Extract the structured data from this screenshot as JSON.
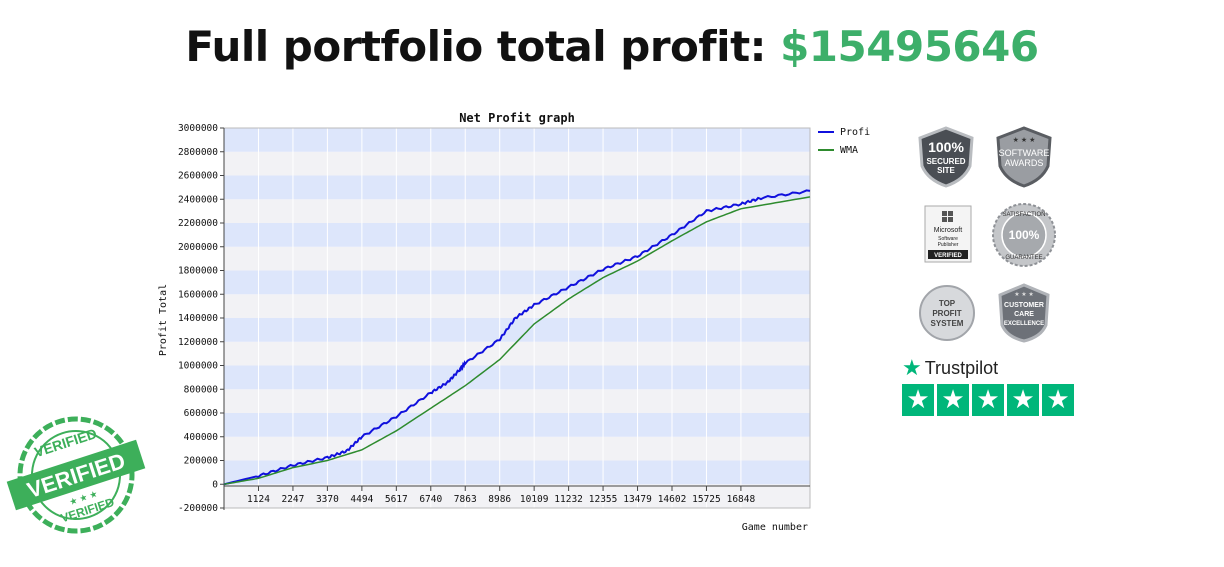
{
  "headline": {
    "label": "Full portfolio total profit:",
    "amount": "$15495646",
    "amount_color": "#3daf6a"
  },
  "chart_data": {
    "type": "line",
    "title": "Net Profit graph",
    "xlabel": "Game number",
    "ylabel": "Profit Total",
    "xlim": [
      0,
      19100
    ],
    "ylim": [
      -200000,
      3000000
    ],
    "x_ticks": [
      "1124",
      "2247",
      "3370",
      "4494",
      "5617",
      "6740",
      "7863",
      "8986",
      "10109",
      "11232",
      "12355",
      "13479",
      "14602",
      "15725",
      "16848"
    ],
    "y_ticks": [
      "3000000",
      "2800000",
      "2600000",
      "2400000",
      "2200000",
      "2000000",
      "1800000",
      "1600000",
      "1400000",
      "1200000",
      "1000000",
      "800000",
      "600000",
      "400000",
      "200000",
      "0",
      "-200000"
    ],
    "grid": true,
    "legend_position": "top-right",
    "series": [
      {
        "name": "Profit",
        "color": "#1010dd",
        "points": [
          [
            0,
            0
          ],
          [
            1124,
            70000
          ],
          [
            2247,
            160000
          ],
          [
            3370,
            225000
          ],
          [
            4000,
            280000
          ],
          [
            4494,
            400000
          ],
          [
            5617,
            570000
          ],
          [
            6740,
            770000
          ],
          [
            7300,
            860000
          ],
          [
            7700,
            970000
          ],
          [
            7863,
            1020000
          ],
          [
            8986,
            1220000
          ],
          [
            9500,
            1400000
          ],
          [
            10109,
            1510000
          ],
          [
            11232,
            1660000
          ],
          [
            12355,
            1810000
          ],
          [
            13479,
            1920000
          ],
          [
            14602,
            2100000
          ],
          [
            15725,
            2300000
          ],
          [
            16848,
            2360000
          ],
          [
            17500,
            2410000
          ],
          [
            19100,
            2470000
          ]
        ]
      },
      {
        "name": "WMA",
        "color": "#2e8b2e",
        "points": [
          [
            0,
            0
          ],
          [
            1124,
            50000
          ],
          [
            2247,
            140000
          ],
          [
            3370,
            200000
          ],
          [
            4494,
            290000
          ],
          [
            5617,
            450000
          ],
          [
            6740,
            640000
          ],
          [
            7863,
            830000
          ],
          [
            8986,
            1050000
          ],
          [
            10109,
            1350000
          ],
          [
            11232,
            1560000
          ],
          [
            12355,
            1740000
          ],
          [
            13479,
            1880000
          ],
          [
            14602,
            2050000
          ],
          [
            15725,
            2210000
          ],
          [
            16848,
            2320000
          ],
          [
            19100,
            2420000
          ]
        ]
      }
    ]
  },
  "badges": [
    {
      "key": "secured",
      "lines": [
        "100%",
        "SECURED",
        "SITE"
      ]
    },
    {
      "key": "awards",
      "lines": [
        "SOFTWARE",
        "AWARDS"
      ]
    },
    {
      "key": "microsoft",
      "lines": [
        "Microsoft",
        "Software",
        "Publisher",
        "VERIFIED"
      ]
    },
    {
      "key": "satisfaction",
      "lines": [
        "SATISFACTION",
        "100%",
        "GUARANTEE"
      ]
    },
    {
      "key": "top-profit",
      "lines": [
        "TOP",
        "PROFIT",
        "SYSTEM"
      ]
    },
    {
      "key": "customer-care",
      "lines": [
        "CUSTOMER",
        "CARE",
        "EXCELLENCE"
      ]
    }
  ],
  "trustpilot": {
    "brand": "Trustpilot",
    "stars": 5,
    "color": "#00b67a"
  },
  "stamp": {
    "top": "VERIFIED",
    "middle": "VERIFIED",
    "bottom": "VERIFIED",
    "color": "#3daf5a"
  }
}
